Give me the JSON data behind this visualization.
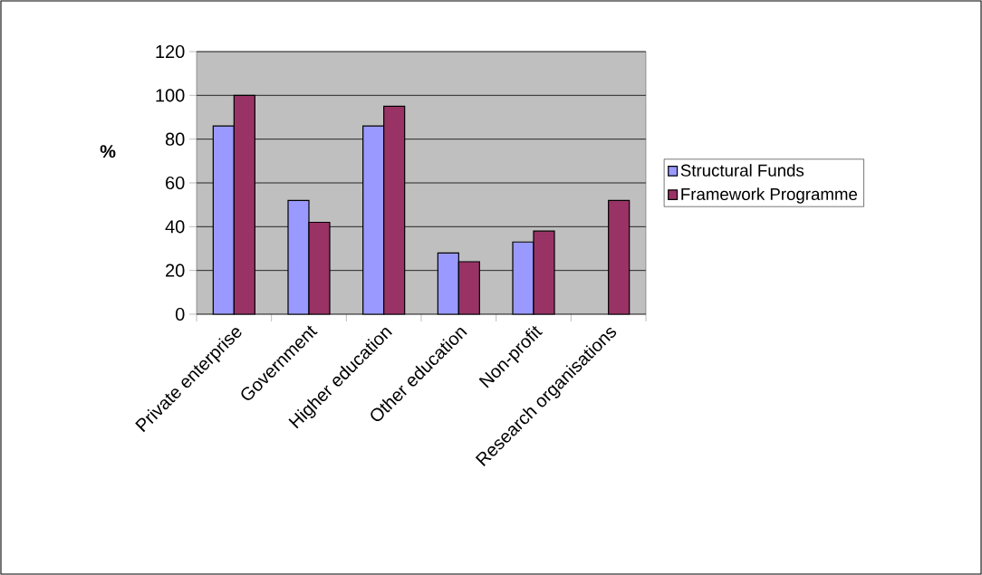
{
  "chart_data": {
    "type": "bar",
    "ylabel": "%",
    "categories": [
      "Private enterprise",
      "Government",
      "Higher education",
      "Other education",
      "Non-profit",
      "Research organisations"
    ],
    "series": [
      {
        "name": "Structural Funds",
        "color": "#9999ff",
        "values": [
          86,
          52,
          86,
          28,
          33,
          null
        ]
      },
      {
        "name": "Framework Programme",
        "color": "#993366",
        "values": [
          100,
          42,
          95,
          24,
          38,
          52
        ]
      }
    ],
    "ylim": [
      0,
      120
    ],
    "yticks": [
      0,
      20,
      40,
      60,
      80,
      100,
      120
    ],
    "grid": "y",
    "legend": "right"
  }
}
